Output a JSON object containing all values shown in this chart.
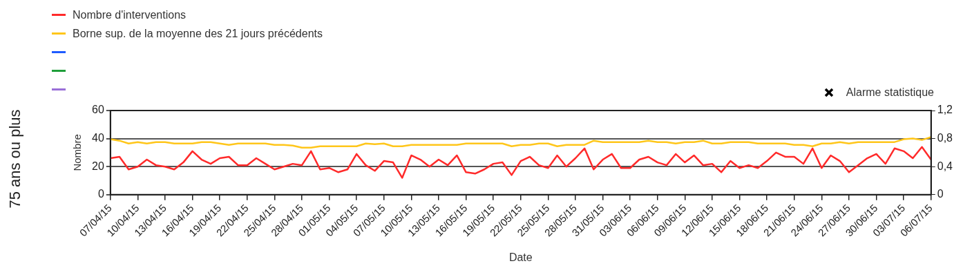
{
  "chart_data": {
    "type": "line",
    "title": "75 ans ou plus",
    "xlabel": "Date",
    "ylabel": "Nombre",
    "x": [
      "--04-07",
      "--04-08",
      "--04-09",
      "--04-10",
      "--04-11",
      "--04-12",
      "--04-13",
      "--04-14",
      "--04-15",
      "--04-16",
      "--04-17",
      "--04-18",
      "--04-19",
      "--04-20",
      "--04-21",
      "--04-22",
      "--04-23",
      "--04-24",
      "--04-25",
      "--04-26",
      "--04-27",
      "--04-28",
      "--04-29",
      "--04-30",
      "--05-01",
      "--05-02",
      "--05-03",
      "--05-04",
      "--05-05",
      "--05-06",
      "--05-07",
      "--05-08",
      "--05-09",
      "--05-10",
      "--05-11",
      "--05-12",
      "--05-13",
      "--05-14",
      "--05-15",
      "--05-16",
      "--05-17",
      "--05-18",
      "--05-19",
      "--05-20",
      "--05-21",
      "--05-22",
      "--05-23",
      "--05-24",
      "--05-25",
      "--05-26",
      "--05-27",
      "--05-28",
      "--05-29",
      "--05-30",
      "--05-31",
      "--06-01",
      "--06-02",
      "--06-03",
      "--06-04",
      "--06-05",
      "--06-06",
      "--06-07",
      "--06-08",
      "--06-09",
      "--06-10",
      "--06-11",
      "--06-12",
      "--06-13",
      "--06-14",
      "--06-15",
      "--06-16",
      "--06-17",
      "--06-18",
      "--06-19",
      "--06-20",
      "--06-21",
      "--06-22",
      "--06-23",
      "--06-24",
      "--06-25",
      "--06-26",
      "--06-27",
      "--06-28",
      "--06-29",
      "--06-30",
      "--07-01",
      "--07-02",
      "--07-03",
      "--07-04",
      "--07-05",
      "--07-06"
    ],
    "series": [
      {
        "name": "Nombre d'interventions",
        "color": "#ff2a2a",
        "values": [
          26,
          27,
          18,
          20,
          25,
          21,
          20,
          18,
          23,
          31,
          25,
          22,
          26,
          27,
          21,
          21,
          26,
          22,
          18,
          20,
          22,
          21,
          31,
          18,
          19,
          16,
          18,
          29,
          21,
          17,
          24,
          23,
          12,
          28,
          25,
          20,
          25,
          21,
          28,
          16,
          15,
          18,
          22,
          23,
          14,
          24,
          27,
          21,
          19,
          28,
          20,
          26,
          33,
          18,
          25,
          29,
          19,
          19,
          25,
          27,
          23,
          21,
          29,
          23,
          28,
          21,
          22,
          16,
          24,
          19,
          21,
          19,
          24,
          30,
          27,
          27,
          22,
          33,
          19,
          28,
          24,
          16,
          21,
          26,
          29,
          22,
          33,
          31,
          26,
          34,
          25
        ]
      },
      {
        "name": "Borne sup. de la moyenne des 21 jours précédents",
        "color": "#ffc61a",
        "values": [
          39.5,
          38.5,
          36.5,
          37.5,
          36.5,
          37.5,
          37.5,
          36.5,
          36.5,
          36.5,
          37.5,
          37.5,
          36.5,
          35.5,
          36.5,
          36.5,
          36.5,
          36.5,
          35.5,
          35.5,
          35,
          33.5,
          33.5,
          34.5,
          34.5,
          34.5,
          34.5,
          34.5,
          36.5,
          36,
          36.5,
          34.5,
          34.5,
          35.5,
          35.5,
          35.5,
          35.5,
          35.5,
          35.5,
          36.5,
          36.5,
          36.5,
          36.5,
          36.5,
          34.5,
          35.5,
          35.5,
          36.5,
          36.5,
          34.5,
          35.5,
          35.5,
          35.5,
          38.5,
          37.5,
          37.5,
          37.5,
          37.5,
          37.5,
          38.5,
          37.5,
          37.5,
          36.5,
          37.5,
          37.5,
          38.5,
          36.5,
          36.5,
          37.5,
          37.5,
          37.5,
          36.5,
          36.5,
          36.5,
          36.5,
          35.5,
          35.5,
          34.5,
          36.5,
          36.5,
          37.5,
          36.5,
          37.5,
          37.5,
          37.5,
          37.5,
          37.5,
          39.5,
          40,
          39,
          41
        ]
      },
      {
        "color": "#1f5bff",
        "values": [
          null,
          null,
          null,
          null,
          null,
          null,
          null,
          null,
          null,
          null,
          null,
          null,
          null,
          null,
          null,
          null,
          null,
          null,
          null,
          null,
          null,
          null,
          null,
          null,
          null,
          null,
          null,
          null,
          null,
          null,
          null,
          null,
          null,
          null,
          null,
          null,
          null,
          null,
          null,
          null,
          null,
          null,
          null,
          null,
          null,
          null,
          null,
          null,
          null,
          null,
          null,
          null,
          null,
          null,
          null,
          null,
          null,
          null,
          null,
          null,
          null,
          null,
          null,
          null,
          null,
          null,
          null,
          null,
          null,
          null,
          null,
          null,
          null,
          null,
          null,
          null,
          null,
          null,
          null,
          null,
          null,
          null,
          null,
          null,
          null,
          null,
          null,
          null,
          null,
          null,
          null
        ]
      },
      {
        "color": "#1f9e3a",
        "values": [
          null,
          null,
          null,
          null,
          null,
          null,
          null,
          null,
          null,
          null,
          null,
          null,
          null,
          null,
          null,
          null,
          null,
          null,
          null,
          null,
          null,
          null,
          null,
          null,
          null,
          null,
          null,
          null,
          null,
          null,
          null,
          null,
          null,
          null,
          null,
          null,
          null,
          null,
          null,
          null,
          null,
          null,
          null,
          null,
          null,
          null,
          null,
          null,
          null,
          null,
          null,
          null,
          null,
          null,
          null,
          null,
          null,
          null,
          null,
          null,
          null,
          null,
          null,
          null,
          null,
          null,
          null,
          null,
          null,
          null,
          null,
          null,
          null,
          null,
          null,
          null,
          null,
          null,
          null,
          null,
          null,
          null,
          null,
          null,
          null,
          null,
          null,
          null,
          null,
          null,
          null
        ]
      },
      {
        "color": "#9a6fd8",
        "values": [
          null,
          null,
          null,
          null,
          null,
          null,
          null,
          null,
          null,
          null,
          null,
          null,
          null,
          null,
          null,
          null,
          null,
          null,
          null,
          null,
          null,
          null,
          null,
          null,
          null,
          null,
          null,
          null,
          null,
          null,
          null,
          null,
          null,
          null,
          null,
          null,
          null,
          null,
          null,
          null,
          null,
          null,
          null,
          null,
          null,
          null,
          null,
          null,
          null,
          null,
          null,
          null,
          null,
          null,
          null,
          null,
          null,
          null,
          null,
          null,
          null,
          null,
          null,
          null,
          null,
          null,
          null,
          null,
          null,
          null,
          null,
          null,
          null,
          null,
          null,
          null,
          null,
          null,
          null,
          null,
          null,
          null,
          null,
          null,
          null,
          null,
          null,
          null,
          null,
          null,
          null
        ]
      },
      {
        "name": "Alarme statistique",
        "type": "scatter",
        "marker": "cross",
        "color": "#000000",
        "values": [
          null,
          null,
          null,
          null,
          null,
          null,
          null,
          null,
          null,
          null,
          null,
          null,
          null,
          null,
          null,
          null,
          null,
          null,
          null,
          null,
          null,
          null,
          null,
          null,
          null,
          null,
          null,
          null,
          null,
          null,
          null,
          null,
          null,
          null,
          null,
          null,
          null,
          null,
          null,
          null,
          null,
          null,
          null,
          null,
          null,
          null,
          null,
          null,
          null,
          null,
          null,
          null,
          null,
          null,
          null,
          null,
          null,
          null,
          null,
          null,
          null,
          null,
          null,
          null,
          null,
          null,
          null,
          null,
          null,
          null,
          null,
          null,
          null,
          null,
          null,
          null,
          null,
          null,
          null,
          null,
          null,
          null,
          null,
          null,
          null,
          null,
          null,
          null,
          null,
          null,
          null
        ]
      }
    ],
    "marker": "none",
    "line_style": "solid",
    "grid": "y",
    "legend": "top left",
    "xlim": [
      "--04-07",
      "--07-06"
    ],
    "xticks": [
      {
        "value": "--04-07",
        "label": "07/04/15"
      },
      {
        "value": "--04-10",
        "label": "10/04/15"
      },
      {
        "value": "--04-13",
        "label": "13/04/15"
      },
      {
        "value": "--04-16",
        "label": "16/04/15"
      },
      {
        "value": "--04-19",
        "label": "19/04/15"
      },
      {
        "value": "--04-22",
        "label": "22/04/15"
      },
      {
        "value": "--04-25",
        "label": "25/04/15"
      },
      {
        "value": "--04-28",
        "label": "28/04/15"
      },
      {
        "value": "--05-01",
        "label": "01/05/15"
      },
      {
        "value": "--05-04",
        "label": "04/05/15"
      },
      {
        "value": "--05-07",
        "label": "07/05/15"
      },
      {
        "value": "--05-10",
        "label": "10/05/15"
      },
      {
        "value": "--05-13",
        "label": "13/05/15"
      },
      {
        "value": "--05-16",
        "label": "16/05/15"
      },
      {
        "value": "--05-19",
        "label": "19/05/15"
      },
      {
        "value": "--05-22",
        "label": "22/05/15"
      },
      {
        "value": "--05-25",
        "label": "25/05/15"
      },
      {
        "value": "--05-28",
        "label": "28/05/15"
      },
      {
        "value": "--05-31",
        "label": "31/05/15"
      },
      {
        "value": "--06-03",
        "label": "03/06/15"
      },
      {
        "value": "--06-06",
        "label": "06/06/15"
      },
      {
        "value": "--06-09",
        "label": "09/06/15"
      },
      {
        "value": "--06-12",
        "label": "12/06/15"
      },
      {
        "value": "--06-15",
        "label": "15/06/15"
      },
      {
        "value": "--06-18",
        "label": "18/06/15"
      },
      {
        "value": "--06-21",
        "label": "21/06/15"
      },
      {
        "value": "--06-24",
        "label": "24/06/15"
      },
      {
        "value": "--06-27",
        "label": "27/06/15"
      },
      {
        "value": "--06-30",
        "label": "30/06/15"
      },
      {
        "value": "--07-03",
        "label": "03/07/15"
      },
      {
        "value": "--07-06",
        "label": "06/07/15"
      }
    ],
    "ylim": [
      0,
      60
    ],
    "yticks": [
      0,
      20,
      40,
      60
    ],
    "y2lim": [
      0,
      1.2
    ],
    "y2ticks": [
      0,
      {
        "value": 0.4,
        "label": "0,4"
      },
      {
        "value": 0.8,
        "label": "0,8"
      },
      {
        "value": 1.2,
        "label": "1,2"
      }
    ]
  }
}
